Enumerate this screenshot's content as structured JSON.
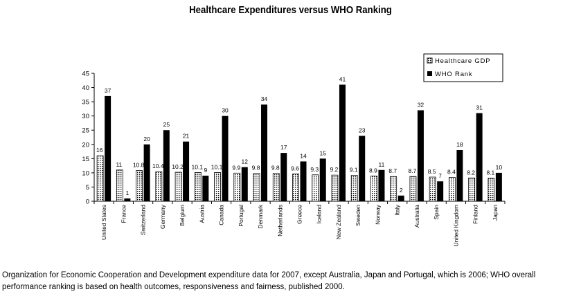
{
  "chart_data": {
    "type": "bar",
    "title": "Healthcare Expenditures versus WHO Ranking",
    "xlabel": "",
    "ylabel": "",
    "ylim": [
      0,
      45
    ],
    "yticks": [
      0,
      5,
      10,
      15,
      20,
      25,
      30,
      35,
      40,
      45
    ],
    "categories": [
      "United States",
      "France",
      "Switzerland",
      "Germany",
      "Belgium",
      "Austria",
      "Canada",
      "Portugal",
      "Denmark",
      "Netherlands",
      "Greece",
      "Iceland",
      "New Zealand",
      "Sweden",
      "Norway",
      "Italy",
      "Australia",
      "Spain",
      "United Kingdom",
      "Finland",
      "Japan"
    ],
    "series": [
      {
        "name": "Healthcare GDP",
        "values": [
          16,
          11,
          10.8,
          10.4,
          10.2,
          10.1,
          10.1,
          9.9,
          9.8,
          9.8,
          9.6,
          9.3,
          9.2,
          9.1,
          8.9,
          8.7,
          8.7,
          8.5,
          8.4,
          8.2,
          8.1
        ],
        "labels": [
          "16",
          "11",
          "10.8",
          "10.4",
          "10.2",
          "10.1",
          "10.1",
          "9.9",
          "9.8",
          "9.8",
          "9.6",
          "9.3",
          "9.2",
          "9.1",
          "8.9",
          "8.7",
          "8.7",
          "8.5",
          "8.4",
          "8.2",
          "8.1"
        ]
      },
      {
        "name": "WHO Rank",
        "values": [
          37,
          1,
          20,
          25,
          21,
          9,
          30,
          12,
          34,
          17,
          14,
          15,
          41,
          23,
          11,
          2,
          32,
          7,
          18,
          31,
          10
        ],
        "labels": [
          "37",
          "1",
          "20",
          "25",
          "21",
          "9",
          "30",
          "12",
          "34",
          "17",
          "14",
          "15",
          "41",
          "23",
          "11",
          "2",
          "32",
          "7",
          "18",
          "31",
          "10"
        ]
      }
    ],
    "legend_position": "top-right",
    "grid": false
  },
  "caption": "Organization for Economic Cooperation and Development expenditure data for 2007, except Australia, Japan and Portugal, which is 2006; WHO overall performance ranking is based on health outcomes, responsiveness and fairness, published 2000."
}
